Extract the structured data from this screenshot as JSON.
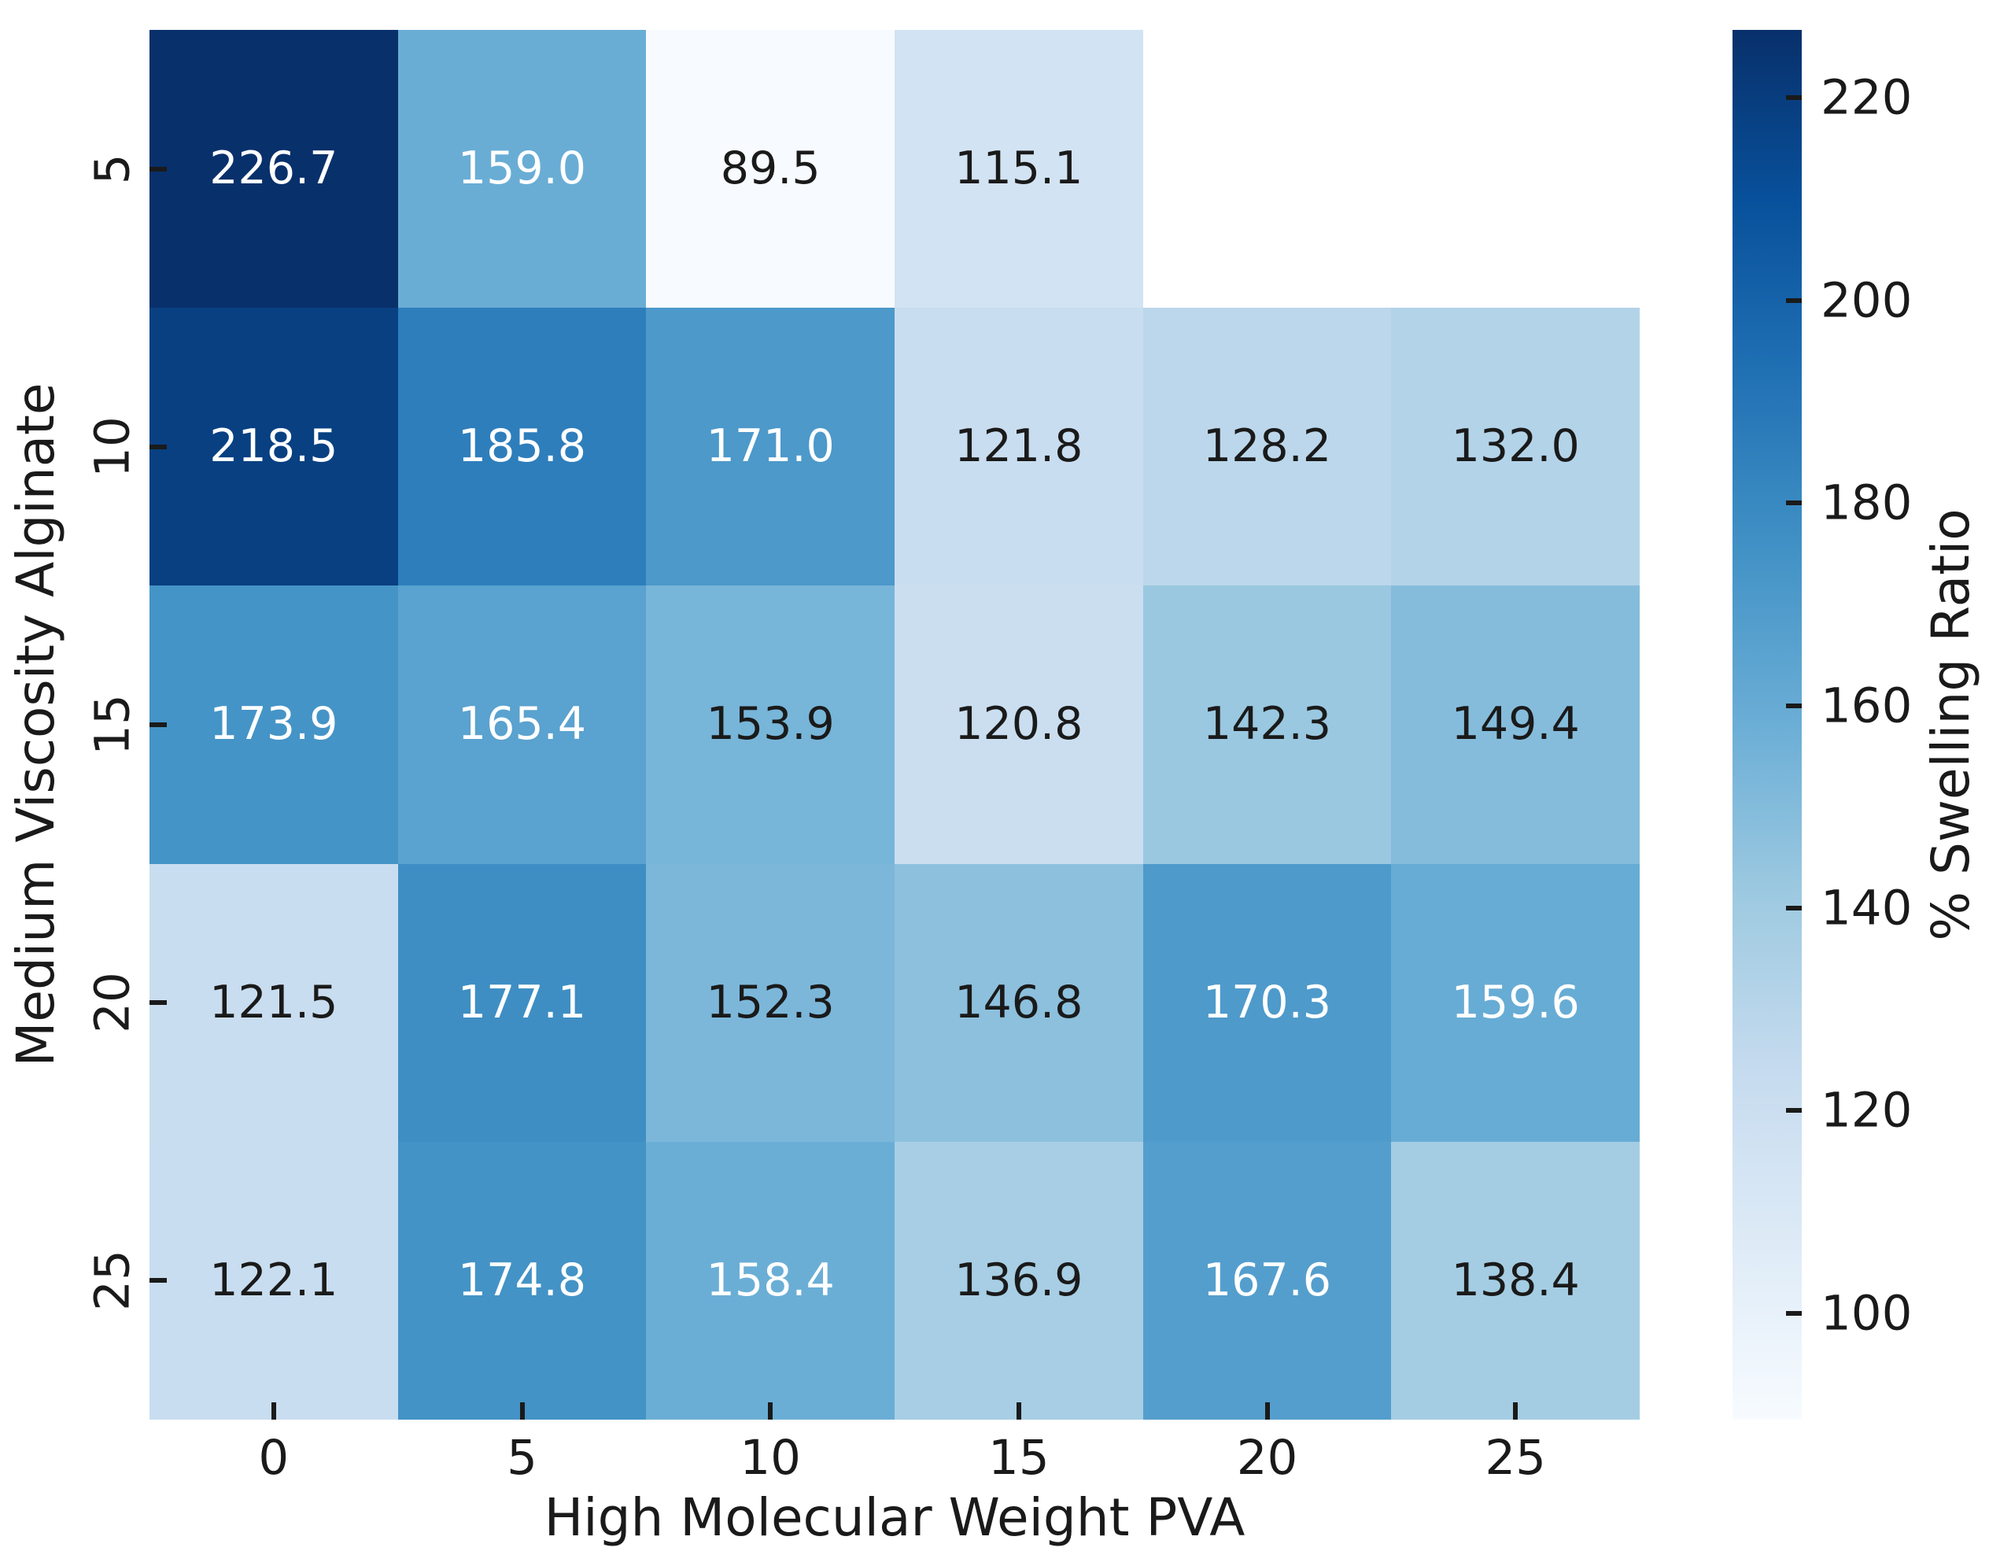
{
  "figure": {
    "background": "#ffffff",
    "text_color": "#1a1a1a",
    "annotation_light_text_color": "#ffffff"
  },
  "chart_data": {
    "type": "heatmap",
    "title": "",
    "xlabel": "High Molecular Weight PVA",
    "ylabel": "Medium Viscosity Alginate",
    "colorbar_label": "% Swelling Ratio",
    "x_ticklabels": [
      "0",
      "5",
      "10",
      "15",
      "20",
      "25"
    ],
    "y_ticklabels": [
      "5",
      "10",
      "15",
      "20",
      "25"
    ],
    "values": [
      [
        226.7,
        159.0,
        89.5,
        115.1,
        null,
        null
      ],
      [
        218.5,
        185.8,
        171.0,
        121.8,
        128.2,
        132.0
      ],
      [
        173.9,
        165.4,
        153.9,
        120.8,
        142.3,
        149.4
      ],
      [
        121.5,
        177.1,
        152.3,
        146.8,
        170.3,
        159.6
      ],
      [
        122.1,
        174.8,
        158.4,
        136.9,
        167.6,
        138.4
      ]
    ],
    "vmin": 89.5,
    "vmax": 226.7,
    "colorbar_ticks": [
      100,
      120,
      140,
      160,
      180,
      200,
      220
    ],
    "colormap": {
      "name": "Blues",
      "anchors": [
        "#f7fbff",
        "#deebf7",
        "#c6dbef",
        "#9ecae1",
        "#6baed6",
        "#4292c6",
        "#2171b5",
        "#08519c",
        "#08306b"
      ]
    },
    "annotation_decimals": 1,
    "grid": false,
    "legend_position": "colorbar-right"
  }
}
